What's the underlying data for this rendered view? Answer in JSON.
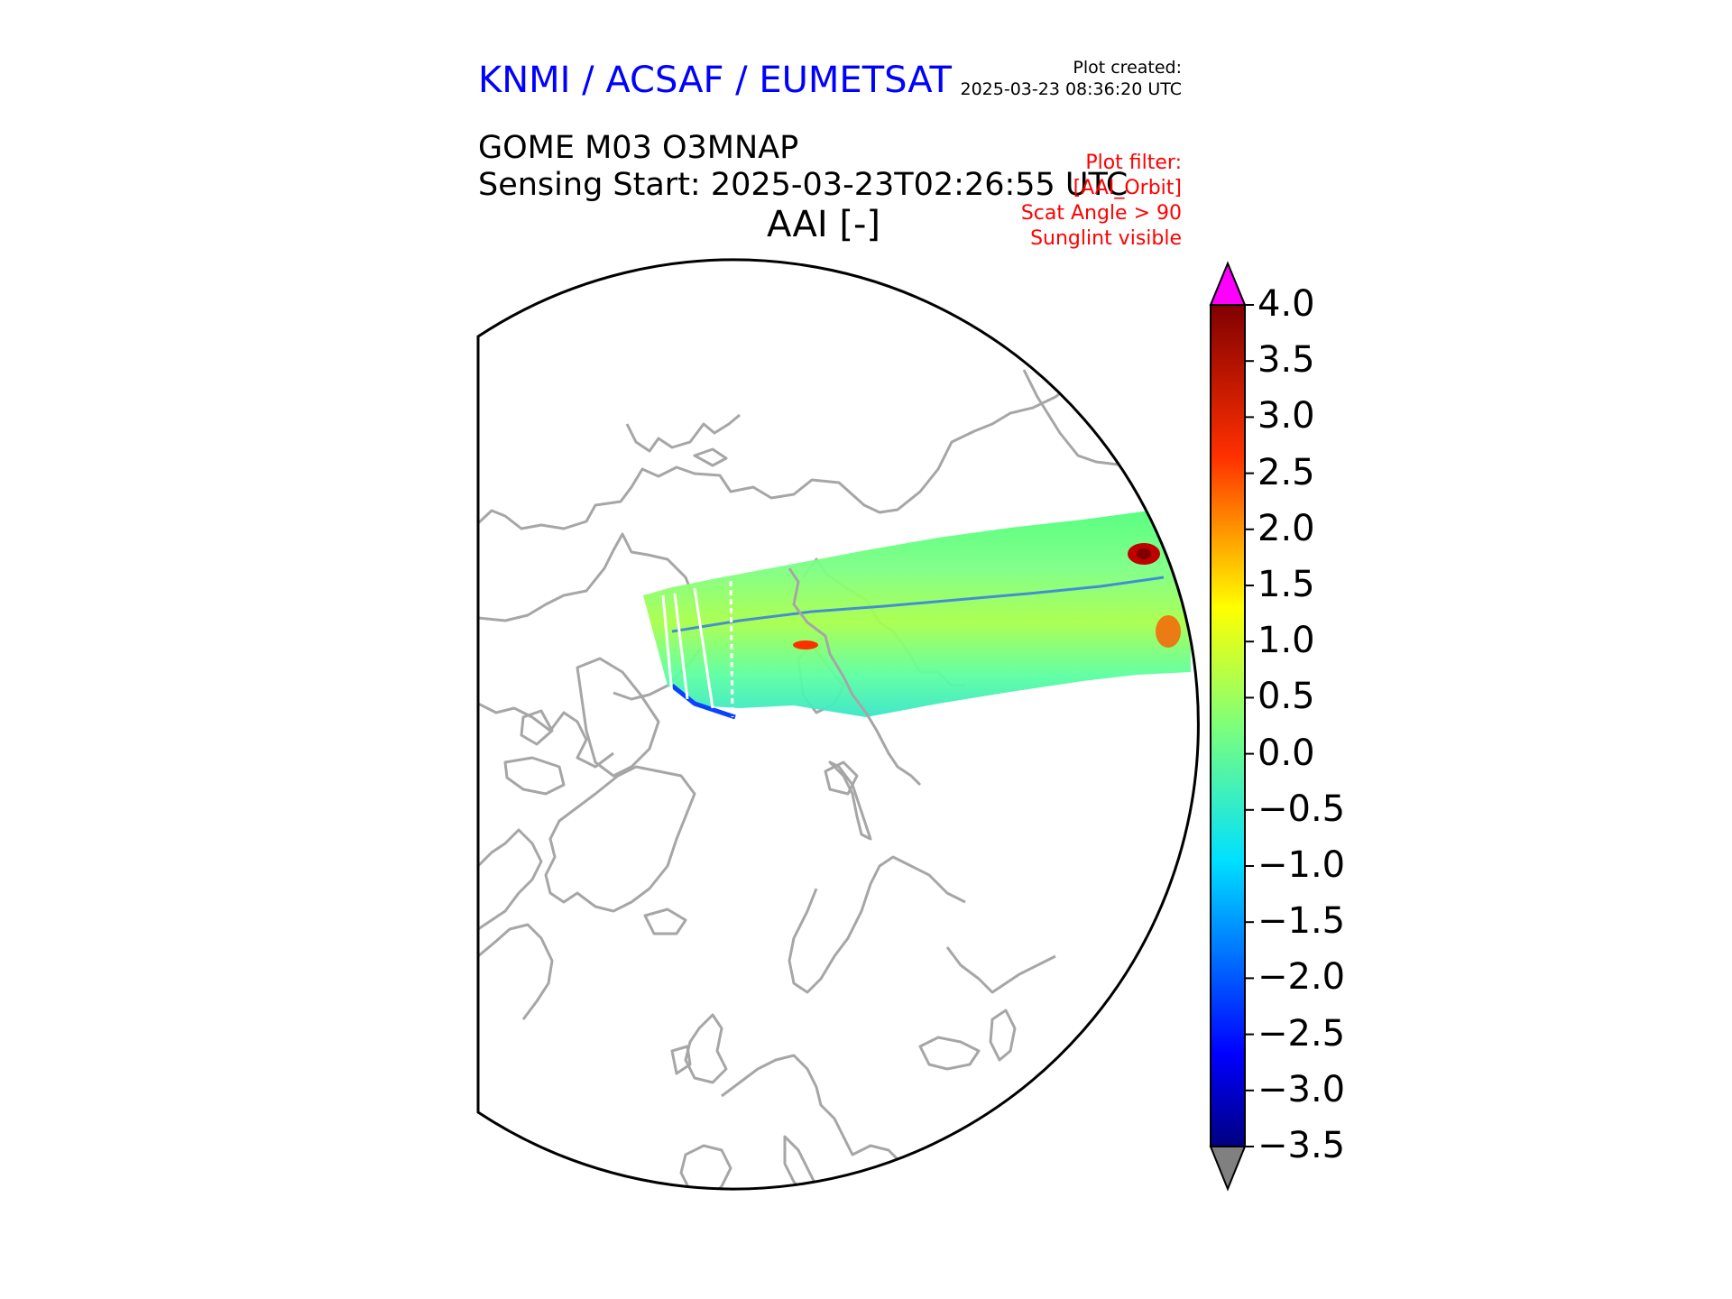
{
  "header": {
    "agency": "KNMI / ACSAF / EUMETSAT",
    "created_label": "Plot created:",
    "created_time": "2025-03-23 08:36:20 UTC",
    "product": "GOME M03 O3MNAP",
    "sensing": "Sensing Start: 2025-03-23T02:26:55 UTC",
    "variable": "AAI [-]"
  },
  "filters": [
    "Plot filter:",
    "[AAI_Orbit]",
    "Scat Angle > 90",
    "Sunglint visible"
  ],
  "colorbar": {
    "ticks": [
      "4.0",
      "3.5",
      "3.0",
      "2.5",
      "2.0",
      "1.5",
      "1.0",
      "0.5",
      "0.0",
      "−0.5",
      "−1.0",
      "−1.5",
      "−2.0",
      "−2.5",
      "−3.0",
      "−3.5"
    ],
    "min": -3.5,
    "max": 4.0,
    "over_color": "#ff00ff",
    "under_color": "#808080"
  },
  "colors": {
    "coastline": "#a6a6a6",
    "agency": "#0000ff",
    "filter": "#ff0000"
  }
}
